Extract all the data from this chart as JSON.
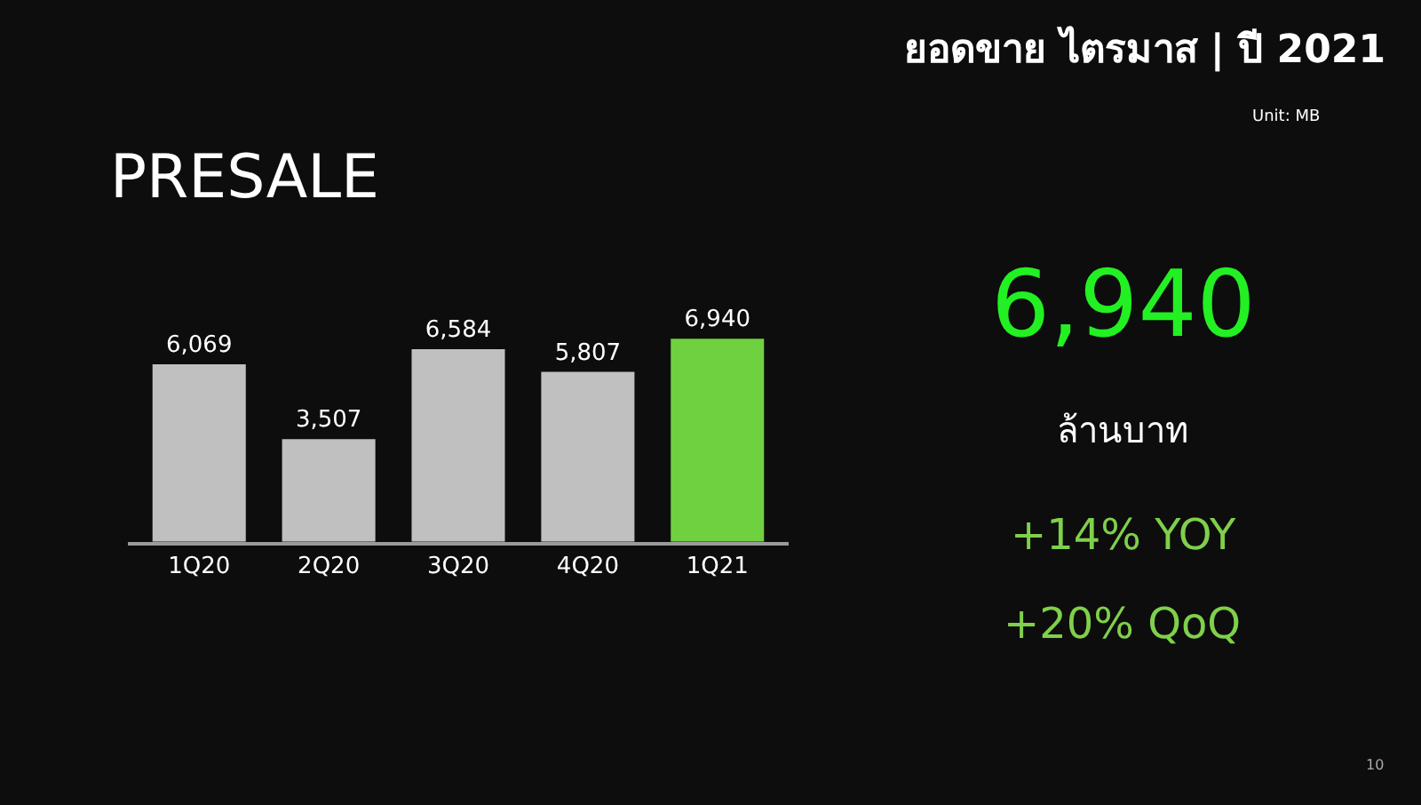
{
  "chart_data": {
    "type": "bar",
    "title": "ยอดขาย ไตรมาส | ปี 2021",
    "subtitle": "PRESALE",
    "categories": [
      "1Q20",
      "2Q20",
      "3Q20",
      "4Q20",
      "1Q21"
    ],
    "values": [
      6069,
      3507,
      6584,
      5807,
      6940
    ],
    "colors": [
      "#c0c0c0",
      "#c0c0c0",
      "#c0c0c0",
      "#c0c0c0",
      "#6fd13f"
    ],
    "value_labels": [
      "6,069",
      "3,507",
      "6,584",
      "5,807",
      "6,940"
    ],
    "annotations": [
      "Unit: MB",
      "6,940",
      "ล้านบาท",
      "+14% YOY",
      "+20% QoQ",
      "10"
    ]
  }
}
